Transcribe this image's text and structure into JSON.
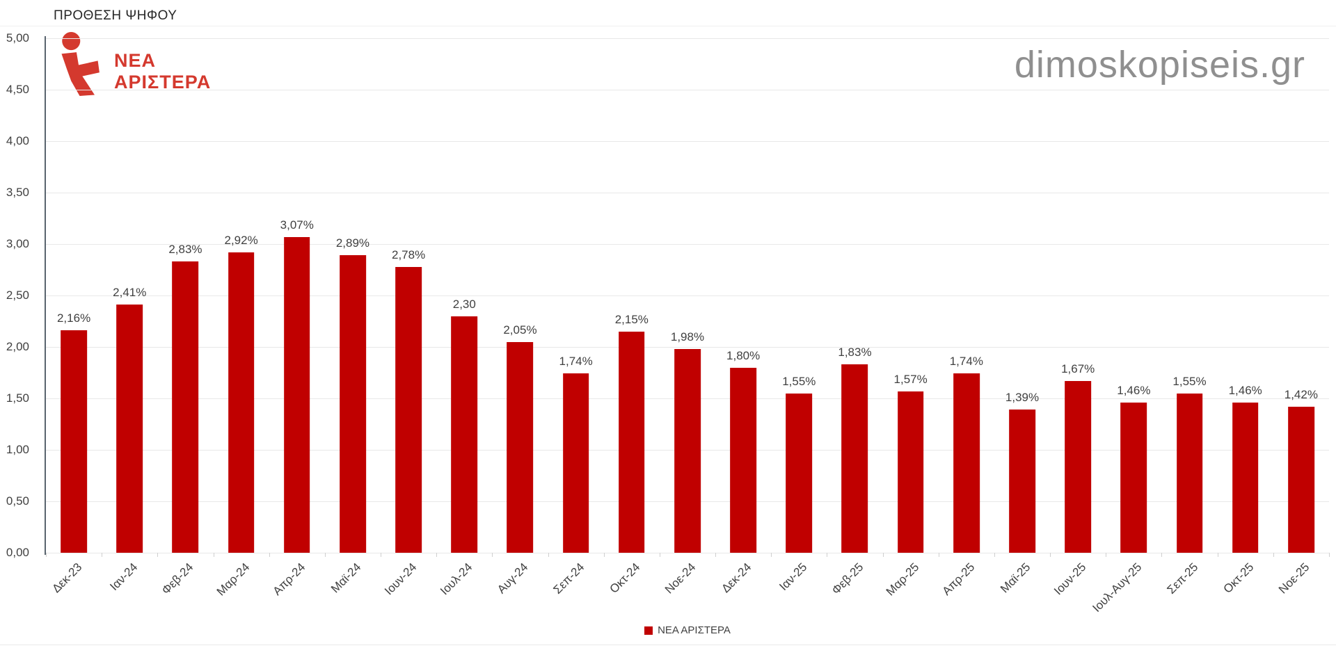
{
  "page": {
    "title": "ΠΡΟΘΕΣΗ ΨΗΦΟΥ",
    "watermark": "dimoskopiseis.gr"
  },
  "logo": {
    "line1": "ΝΕΑ",
    "line2": "ΑΡΙΣΤΕΡΑ",
    "color": "#D4392E"
  },
  "legend": {
    "label": "ΝΕΑ ΑΡΙΣΤΕΡΑ",
    "swatch_color": "#C00000"
  },
  "chart_data": {
    "type": "bar",
    "title": "ΠΡΟΘΕΣΗ ΨΗΦΟΥ",
    "series_name": "ΝΕΑ ΑΡΙΣΤΕΡΑ",
    "bar_color": "#C00000",
    "categories": [
      "Δεκ-23",
      "Ιαν-24",
      "Φεβ-24",
      "Μαρ-24",
      "Απρ-24",
      "Μαϊ-24",
      "Ιουν-24",
      "Ιουλ-24",
      "Αυγ-24",
      "Σεπ-24",
      "Οκτ-24",
      "Νοε-24",
      "Δεκ-24",
      "Ιαν-25",
      "Φεβ-25",
      "Μαρ-25",
      "Απρ-25",
      "Μαϊ-25",
      "Ιουν-25",
      "Ιουλ-Αυγ-25",
      "Σεπ-25",
      "Οκτ-25",
      "Νοε-25"
    ],
    "values": [
      2.16,
      2.41,
      2.83,
      2.92,
      3.07,
      2.89,
      2.78,
      2.3,
      2.05,
      1.74,
      2.15,
      1.98,
      1.8,
      1.55,
      1.83,
      1.57,
      1.74,
      1.39,
      1.67,
      1.46,
      1.55,
      1.46,
      1.42
    ],
    "value_labels": [
      "2,16%",
      "2,41%",
      "2,83%",
      "2,92%",
      "3,07%",
      "2,89%",
      "2,78%",
      "2,30",
      "2,05%",
      "1,74%",
      "2,15%",
      "1,98%",
      "1,80%",
      "1,55%",
      "1,83%",
      "1,57%",
      "1,74%",
      "1,39%",
      "1,67%",
      "1,46%",
      "1,55%",
      "1,46%",
      "1,42%"
    ],
    "ylim": [
      0,
      5
    ],
    "y_tick_step": 0.5,
    "y_tick_labels": [
      "5,00",
      "4,50",
      "4,00",
      "3,50",
      "3,00",
      "2,50",
      "2,00",
      "1,50",
      "1,00",
      "0,50",
      "0,00"
    ],
    "grid": true,
    "legend_position": "bottom"
  }
}
